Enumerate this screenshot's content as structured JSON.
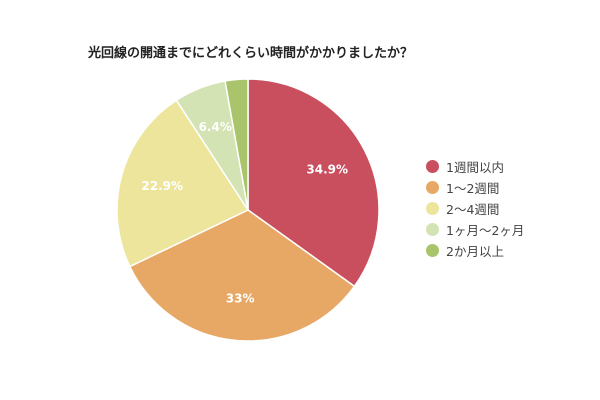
{
  "title": "光回線の開通までにどれくらい時間がかかりましたか？",
  "chart_data": {
    "type": "pie",
    "title": "光回線の開通までにどれくらい時間がかかりましたか？",
    "categories": [
      "1週間以内",
      "1〜2週間",
      "2〜4週間",
      "1ヶ月〜2ヶ月",
      "2か月以上"
    ],
    "values": [
      34.9,
      33,
      22.9,
      6.4,
      2.8
    ],
    "labels": [
      "34.9%",
      "33%",
      "22.9%",
      "6.4%",
      ""
    ],
    "colors": [
      "#c94f5f",
      "#e8a865",
      "#ede59c",
      "#d4e3b3",
      "#a9c46a"
    ],
    "legend_position": "right",
    "start_angle": "12 o'clock, clockwise"
  },
  "legend": {
    "items": [
      {
        "label": "1週間以内",
        "color": "#c94f5f"
      },
      {
        "label": "1〜2週間",
        "color": "#e8a865"
      },
      {
        "label": "2〜4週間",
        "color": "#ede59c"
      },
      {
        "label": "1ヶ月〜2ヶ月",
        "color": "#d4e3b3"
      },
      {
        "label": "2か月以上",
        "color": "#a9c46a"
      }
    ]
  }
}
